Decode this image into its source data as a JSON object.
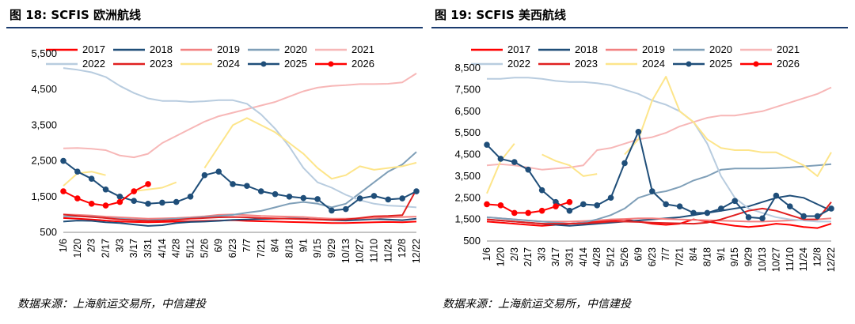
{
  "figures": [
    {
      "title": "图 18: SCFIS 欧洲航线",
      "source": "数据来源：上海航运交易所，中信建投"
    },
    {
      "title": "图 19: SCFIS 美西航线",
      "source": "数据来源：上海航运交易所，中信建投"
    }
  ],
  "chart_data": [
    {
      "type": "line",
      "title": "SCFIS 欧洲航线",
      "xlabel": "",
      "ylabel": "",
      "ylim": [
        500,
        5500
      ],
      "yticks": [
        500,
        1500,
        2500,
        3500,
        4500,
        5500
      ],
      "ytick_labels": [
        "500",
        "1,500",
        "2,500",
        "3,500",
        "4,500",
        "5,500"
      ],
      "categories": [
        "1/6",
        "1/20",
        "2/3",
        "2/17",
        "3/3",
        "3/17",
        "3/31",
        "4/14",
        "4/28",
        "5/12",
        "5/26",
        "6/9",
        "6/23",
        "7/7",
        "7/21",
        "8/4",
        "8/18",
        "9/1",
        "9/15",
        "9/29",
        "10/13",
        "10/27",
        "11/10",
        "11/24",
        "12/8",
        "12/22"
      ],
      "series": [
        {
          "name": "2017",
          "color": "#ff0000",
          "width": 2,
          "marker": false,
          "values": [
            900,
            880,
            860,
            830,
            800,
            790,
            780,
            790,
            800,
            810,
            820,
            830,
            840,
            820,
            810,
            800,
            790,
            780,
            770,
            760,
            760,
            770,
            780,
            790,
            780,
            800
          ]
        },
        {
          "name": "2018",
          "color": "#1f4e79",
          "width": 2,
          "marker": false,
          "values": [
            800,
            830,
            820,
            780,
            760,
            720,
            680,
            700,
            760,
            790,
            800,
            820,
            850,
            860,
            870,
            880,
            890,
            880,
            860,
            840,
            830,
            850,
            870,
            860,
            840,
            880
          ]
        },
        {
          "name": "2019",
          "color": "#f28080",
          "width": 2,
          "marker": false,
          "values": [
            1000,
            990,
            970,
            940,
            920,
            900,
            880,
            890,
            900,
            920,
            950,
            990,
            1000,
            980,
            960,
            950,
            940,
            930,
            900,
            880,
            880,
            890,
            900,
            920,
            930,
            940
          ]
        },
        {
          "name": "2020",
          "color": "#7f9fb8",
          "width": 2,
          "marker": false,
          "values": [
            950,
            950,
            940,
            900,
            880,
            860,
            840,
            860,
            880,
            900,
            930,
            960,
            990,
            1050,
            1100,
            1200,
            1300,
            1350,
            1300,
            1200,
            1300,
            1600,
            1900,
            2200,
            2400,
            2750
          ]
        },
        {
          "name": "2021",
          "color": "#f7b7b7",
          "width": 2,
          "marker": false,
          "values": [
            2850,
            2860,
            2840,
            2800,
            2650,
            2600,
            2700,
            3000,
            3200,
            3400,
            3600,
            3750,
            3850,
            3950,
            4050,
            4150,
            4300,
            4450,
            4550,
            4600,
            4620,
            4650,
            4650,
            4660,
            4700,
            4950
          ]
        },
        {
          "name": "2022",
          "color": "#b8ccdf",
          "width": 2,
          "marker": false,
          "values": [
            5100,
            5050,
            4980,
            4850,
            4600,
            4400,
            4250,
            4180,
            4180,
            4150,
            4170,
            4200,
            4200,
            4100,
            3800,
            3400,
            2900,
            2300,
            1900,
            1750,
            1550,
            1400,
            1300,
            1250,
            1230,
            1200
          ]
        },
        {
          "name": "2023",
          "color": "#e02020",
          "width": 2,
          "marker": false,
          "values": [
            1000,
            960,
            930,
            900,
            860,
            840,
            820,
            830,
            850,
            880,
            900,
            920,
            930,
            920,
            900,
            890,
            880,
            870,
            860,
            850,
            860,
            900,
            950,
            960,
            980,
            1700
          ]
        },
        {
          "name": "2024",
          "color": "#fde58a",
          "width": 2,
          "marker": false,
          "gaps": true,
          "values": [
            1800,
            2150,
            2200,
            2100,
            null,
            1650,
            1700,
            1750,
            1900,
            null,
            2300,
            2900,
            3500,
            3700,
            3500,
            3300,
            3000,
            2700,
            2300,
            2000,
            2100,
            2350,
            2250,
            2300,
            2350,
            2450
          ]
        },
        {
          "name": "2025",
          "color": "#1f4e79",
          "width": 2,
          "marker": true,
          "values": [
            2500,
            2200,
            2000,
            1700,
            1500,
            1380,
            1300,
            1330,
            1350,
            1500,
            2100,
            2200,
            1850,
            1800,
            1650,
            1570,
            1500,
            1460,
            1430,
            1110,
            1150,
            1450,
            1520,
            1420,
            1450,
            1650
          ]
        },
        {
          "name": "2026",
          "color": "#ff0000",
          "width": 2,
          "marker": true,
          "values": [
            1650,
            1450,
            1300,
            1250,
            1350,
            1650,
            1850,
            null,
            null,
            null,
            null,
            null,
            null,
            null,
            null,
            null,
            null,
            null,
            null,
            null,
            null,
            null,
            null,
            null,
            null,
            null
          ]
        }
      ],
      "legend": "top"
    },
    {
      "type": "line",
      "title": "SCFIS 美西航线",
      "xlabel": "",
      "ylabel": "",
      "ylim": [
        500,
        8500
      ],
      "yticks": [
        500,
        1500,
        2500,
        3500,
        4500,
        5500,
        6500,
        7500,
        8500
      ],
      "ytick_labels": [
        "500",
        "1,500",
        "2,500",
        "3,500",
        "4,500",
        "5,500",
        "6,500",
        "7,500",
        "8,500"
      ],
      "categories": [
        "1/6",
        "1/20",
        "2/3",
        "2/17",
        "3/3",
        "3/17",
        "3/31",
        "4/14",
        "4/28",
        "5/12",
        "5/26",
        "6/9",
        "6/23",
        "7/7",
        "7/21",
        "8/4",
        "8/18",
        "9/1",
        "9/15",
        "9/29",
        "10/13",
        "10/27",
        "11/10",
        "11/24",
        "12/8",
        "12/22"
      ],
      "series": [
        {
          "name": "2017",
          "color": "#ff0000",
          "width": 2,
          "marker": false,
          "values": [
            1400,
            1350,
            1300,
            1250,
            1200,
            1250,
            1300,
            1350,
            1400,
            1450,
            1500,
            1400,
            1300,
            1250,
            1300,
            1500,
            1400,
            1300,
            1200,
            1150,
            1200,
            1300,
            1250,
            1150,
            1100,
            1300
          ]
        },
        {
          "name": "2018",
          "color": "#1f4e79",
          "width": 2,
          "marker": false,
          "values": [
            1500,
            1450,
            1400,
            1350,
            1300,
            1250,
            1200,
            1250,
            1300,
            1350,
            1400,
            1450,
            1500,
            1550,
            1600,
            1700,
            1800,
            1900,
            2000,
            2100,
            2300,
            2500,
            2600,
            2500,
            2200,
            1900
          ]
        },
        {
          "name": "2019",
          "color": "#f28080",
          "width": 2,
          "marker": false,
          "values": [
            1600,
            1550,
            1500,
            1450,
            1400,
            1400,
            1400,
            1420,
            1450,
            1500,
            1520,
            1550,
            1550,
            1520,
            1500,
            1480,
            1460,
            1440,
            1420,
            1400,
            1400,
            1420,
            1450,
            1480,
            1500,
            1550
          ]
        },
        {
          "name": "2020",
          "color": "#7f9fb8",
          "width": 2,
          "marker": false,
          "values": [
            1600,
            1550,
            1500,
            1450,
            1400,
            1350,
            1300,
            1350,
            1500,
            1700,
            2000,
            2500,
            2700,
            2800,
            3000,
            3300,
            3500,
            3800,
            3850,
            3850,
            3850,
            3870,
            3900,
            3950,
            4000,
            4050
          ]
        },
        {
          "name": "2021",
          "color": "#f7b7b7",
          "width": 2,
          "marker": false,
          "values": [
            4000,
            4050,
            4000,
            3900,
            3800,
            3850,
            3900,
            4000,
            4700,
            4800,
            5000,
            5200,
            5300,
            5500,
            5800,
            6000,
            6200,
            6300,
            6300,
            6400,
            6500,
            6700,
            6900,
            7100,
            7300,
            7600
          ]
        },
        {
          "name": "2022",
          "color": "#b8ccdf",
          "width": 2,
          "marker": false,
          "values": [
            8000,
            8000,
            8050,
            8050,
            8000,
            7900,
            7850,
            7850,
            7800,
            7700,
            7500,
            7300,
            7000,
            6800,
            6500,
            6000,
            5000,
            3500,
            2500,
            2000,
            1800,
            1600,
            1500,
            1450,
            1400,
            1400
          ]
        },
        {
          "name": "2023",
          "color": "#e02020",
          "width": 2,
          "marker": false,
          "values": [
            1500,
            1450,
            1400,
            1350,
            1300,
            1300,
            1300,
            1320,
            1350,
            1400,
            1400,
            1380,
            1350,
            1330,
            1320,
            1300,
            1350,
            1500,
            1700,
            1900,
            2000,
            1900,
            1700,
            1500,
            1500,
            2300
          ]
        },
        {
          "name": "2024",
          "color": "#fde58a",
          "width": 2,
          "marker": false,
          "gaps": true,
          "values": [
            2700,
            4200,
            5000,
            null,
            4500,
            4200,
            4000,
            3500,
            3600,
            null,
            4500,
            5200,
            7000,
            8100,
            6500,
            6000,
            5200,
            4800,
            4700,
            4700,
            4600,
            4600,
            4300,
            4000,
            3500,
            4600
          ]
        },
        {
          "name": "2025",
          "color": "#1f4e79",
          "width": 2,
          "marker": true,
          "values": [
            4950,
            4300,
            4150,
            3800,
            2850,
            2300,
            1900,
            2200,
            2150,
            2500,
            4100,
            5550,
            2800,
            2200,
            2100,
            1800,
            1800,
            2000,
            2350,
            1600,
            1550,
            2600,
            2100,
            1650,
            1650,
            2000
          ]
        },
        {
          "name": "2026",
          "color": "#ff0000",
          "width": 2,
          "marker": true,
          "values": [
            2200,
            2150,
            1800,
            1800,
            1900,
            2100,
            2300,
            null,
            null,
            null,
            null,
            null,
            null,
            null,
            null,
            null,
            null,
            null,
            null,
            null,
            null,
            null,
            null,
            null,
            null,
            null
          ]
        }
      ],
      "legend": "top"
    }
  ]
}
